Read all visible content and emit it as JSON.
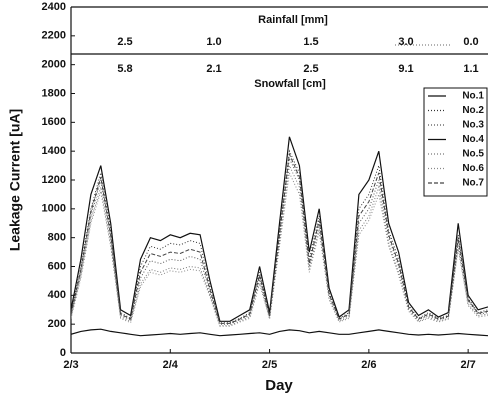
{
  "chart_data": {
    "type": "line",
    "y_label": "Leakage Current [uA]",
    "x_label": "Day",
    "rainfall_title": "Rainfall [mm]",
    "rainfall_labels": [
      "2.5",
      "1.0",
      "1.5",
      "3.0",
      "0.0"
    ],
    "snowfall_title": "Snowfall [cm]",
    "snowfall_labels": [
      "5.8",
      "2.1",
      "2.5",
      "9.1",
      "1.1"
    ],
    "x": [
      3.0,
      3.1,
      3.2,
      3.3,
      3.4,
      3.5,
      3.6,
      3.7,
      3.8,
      3.9,
      4.0,
      4.1,
      4.2,
      4.3,
      4.4,
      4.5,
      4.6,
      4.7,
      4.8,
      4.9,
      5.0,
      5.1,
      5.2,
      5.3,
      5.4,
      5.5,
      5.6,
      5.7,
      5.8,
      5.9,
      6.0,
      6.1,
      6.2,
      6.3,
      6.4,
      6.5,
      6.6,
      6.7,
      6.8,
      6.9,
      7.0,
      7.1,
      7.2
    ],
    "xlim": [
      3.0,
      7.2
    ],
    "xticks": [
      {
        "value": 3,
        "label": "2/3"
      },
      {
        "value": 4,
        "label": "2/4"
      },
      {
        "value": 5,
        "label": "2/5"
      },
      {
        "value": 6,
        "label": "2/6"
      },
      {
        "value": 7,
        "label": "2/7"
      }
    ],
    "ylim": [
      0,
      2400
    ],
    "yticks": [
      0,
      200,
      400,
      600,
      800,
      1000,
      1200,
      1400,
      1600,
      1800,
      2000,
      2200,
      2400
    ],
    "series": [
      {
        "name": "No.1",
        "color": "#111111",
        "style": "solid",
        "values": [
          300,
          650,
          1100,
          1300,
          900,
          300,
          260,
          650,
          800,
          780,
          820,
          800,
          830,
          820,
          500,
          220,
          220,
          260,
          300,
          600,
          280,
          900,
          1500,
          1300,
          700,
          1000,
          450,
          250,
          300,
          1100,
          1200,
          1400,
          900,
          700,
          350,
          260,
          300,
          250,
          280,
          900,
          400,
          300,
          320
        ]
      },
      {
        "name": "No.2",
        "color": "#333333",
        "style": "dotted",
        "values": [
          280,
          600,
          1000,
          1250,
          850,
          280,
          240,
          600,
          740,
          720,
          760,
          750,
          780,
          760,
          460,
          210,
          210,
          240,
          280,
          560,
          260,
          850,
          1400,
          1250,
          650,
          950,
          420,
          240,
          280,
          1000,
          1100,
          1300,
          850,
          650,
          330,
          240,
          280,
          240,
          260,
          820,
          380,
          280,
          300
        ]
      },
      {
        "name": "No.3",
        "color": "#555555",
        "style": "dotted",
        "values": [
          260,
          560,
          950,
          1200,
          800,
          260,
          230,
          520,
          640,
          620,
          650,
          640,
          670,
          650,
          420,
          200,
          200,
          230,
          260,
          520,
          250,
          800,
          1350,
          1200,
          600,
          900,
          400,
          230,
          260,
          900,
          1000,
          1200,
          800,
          600,
          310,
          230,
          260,
          230,
          250,
          780,
          360,
          270,
          280
        ]
      },
      {
        "name": "No.4",
        "color": "#111111",
        "style": "solid",
        "values": [
          130,
          150,
          160,
          165,
          150,
          140,
          130,
          120,
          125,
          130,
          135,
          130,
          135,
          140,
          130,
          120,
          125,
          130,
          135,
          140,
          130,
          150,
          160,
          155,
          140,
          150,
          140,
          130,
          130,
          140,
          150,
          160,
          150,
          140,
          130,
          125,
          130,
          125,
          130,
          135,
          130,
          125,
          120
        ]
      },
      {
        "name": "No.5",
        "color": "#777777",
        "style": "dotted",
        "values": [
          250,
          540,
          920,
          1150,
          760,
          250,
          220,
          480,
          580,
          560,
          590,
          580,
          600,
          590,
          400,
          190,
          190,
          220,
          250,
          500,
          240,
          760,
          1300,
          1150,
          580,
          860,
          380,
          220,
          250,
          850,
          950,
          1150,
          760,
          560,
          300,
          220,
          250,
          220,
          240,
          740,
          340,
          260,
          270
        ]
      },
      {
        "name": "No.6",
        "color": "#888888",
        "style": "dotted",
        "values": [
          240,
          520,
          900,
          1120,
          740,
          240,
          210,
          460,
          560,
          540,
          570,
          560,
          580,
          570,
          390,
          185,
          185,
          215,
          240,
          480,
          235,
          740,
          1250,
          1100,
          560,
          840,
          370,
          215,
          240,
          820,
          920,
          1100,
          740,
          540,
          290,
          215,
          240,
          215,
          235,
          720,
          330,
          250,
          260
        ]
      },
      {
        "name": "No.7",
        "color": "#444444",
        "style": "dashed",
        "values": [
          270,
          580,
          980,
          1220,
          820,
          270,
          235,
          560,
          690,
          670,
          700,
          690,
          720,
          700,
          440,
          205,
          205,
          235,
          270,
          540,
          255,
          820,
          1380,
          1220,
          620,
          920,
          410,
          235,
          270,
          950,
          1050,
          1250,
          820,
          620,
          320,
          235,
          270,
          235,
          255,
          800,
          370,
          275,
          290
        ]
      }
    ]
  }
}
